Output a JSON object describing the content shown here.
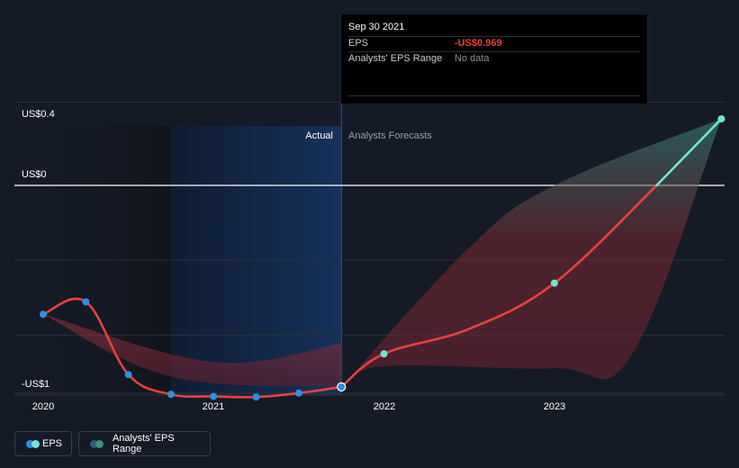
{
  "chart_data": {
    "type": "line",
    "y_ticks": [
      {
        "value": 0.4,
        "label": "US$0.4"
      },
      {
        "value": 0,
        "label": "US$0"
      },
      {
        "value": -1,
        "label": "-US$1"
      }
    ],
    "x_ticks": [
      {
        "value": 2020.0,
        "label": "2020"
      },
      {
        "value": 2021.0,
        "label": "2021"
      },
      {
        "value": 2022.0,
        "label": "2022"
      },
      {
        "value": 2023.0,
        "label": "2023"
      }
    ],
    "ylim": [
      -1.02,
      0.4
    ],
    "xlim": [
      2019.83,
      2023.98
    ],
    "highlight_region": [
      2020.75,
      2021.75
    ],
    "divider_x": 2021.75,
    "region_labels": {
      "actual": "Actual",
      "forecast": "Analysts Forecasts"
    },
    "series": [
      {
        "name": "EPS",
        "kind": "actual",
        "color": "#e8403e",
        "marker_color": "#2f8fdc",
        "points": [
          {
            "x": 2020.0,
            "y": -0.62
          },
          {
            "x": 2020.25,
            "y": -0.56
          },
          {
            "x": 2020.5,
            "y": -0.91
          },
          {
            "x": 2020.75,
            "y": -1.005
          },
          {
            "x": 2021.0,
            "y": -1.015
          },
          {
            "x": 2021.25,
            "y": -1.018
          },
          {
            "x": 2021.5,
            "y": -0.999
          },
          {
            "x": 2021.75,
            "y": -0.969
          }
        ]
      },
      {
        "name": "EPS",
        "kind": "forecast",
        "color": "#e8403e",
        "positive_color": "#6ee7d5",
        "marker_color": "#6ee7d5",
        "points": [
          {
            "x": 2021.75,
            "y": -0.969
          },
          {
            "x": 2022.0,
            "y": -0.81
          },
          {
            "x": 2022.5,
            "y": -0.69
          },
          {
            "x": 2023.0,
            "y": -0.47
          },
          {
            "x": 2023.6,
            "y": 0.0
          },
          {
            "x": 2023.98,
            "y": 0.32
          }
        ],
        "markers_at": [
          2022.0,
          2023.0,
          2023.98
        ]
      }
    ],
    "ranges": [
      {
        "name": "Analysts' EPS Range",
        "kind": "past",
        "upper": [
          {
            "x": 2020.0,
            "y": -0.62
          },
          {
            "x": 2021.0,
            "y": -0.85
          },
          {
            "x": 2021.75,
            "y": -0.76
          }
        ],
        "lower": [
          {
            "x": 2020.0,
            "y": -0.62
          },
          {
            "x": 2020.75,
            "y": -0.92
          },
          {
            "x": 2021.75,
            "y": -0.969
          }
        ]
      },
      {
        "name": "Analysts' EPS Range",
        "kind": "future",
        "upper": [
          {
            "x": 2021.75,
            "y": -0.969
          },
          {
            "x": 2022.5,
            "y": -0.3
          },
          {
            "x": 2023.0,
            "y": 0.0
          },
          {
            "x": 2023.98,
            "y": 0.32
          }
        ],
        "lower": [
          {
            "x": 2021.75,
            "y": -0.969
          },
          {
            "x": 2022.0,
            "y": -0.87
          },
          {
            "x": 2023.0,
            "y": -0.88
          },
          {
            "x": 2023.45,
            "y": -0.82
          },
          {
            "x": 2023.98,
            "y": 0.32
          }
        ]
      }
    ]
  },
  "tooltip": {
    "date": "Sep 30 2021",
    "eps_label": "EPS",
    "eps_value": "-US$0.969",
    "range_label": "Analysts' EPS Range",
    "range_value": "No data"
  },
  "legend": {
    "eps_label": "EPS",
    "range_label": "Analysts' EPS Range",
    "eps_colors": [
      "#6ee7d5",
      "#2f8fdc"
    ],
    "range_colors": [
      "#3f8f8a",
      "#2c5f7a"
    ]
  },
  "colors": {
    "background": "#151b26",
    "grid": "#2a303b",
    "zero_line": "#ffffff",
    "highlight": "#13284a",
    "divider": "#2a5a9a"
  }
}
